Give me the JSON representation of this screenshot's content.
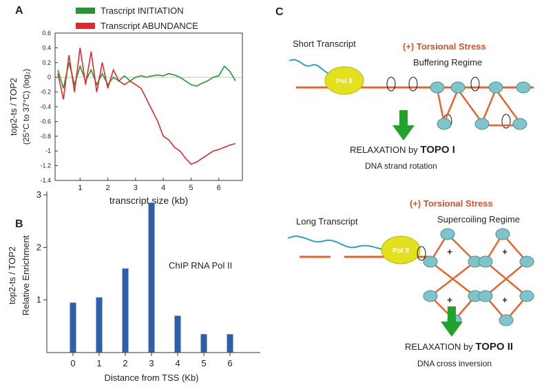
{
  "panel_labels": [
    "A",
    "B",
    "C"
  ],
  "chart_data": [
    {
      "type": "line",
      "ylabel": [
        "top2-ts / TOP2",
        "(25°C to 37°C) (log₂)"
      ],
      "xlabel": "transcript  size  (kb)",
      "x": [
        0.2,
        0.4,
        0.6,
        0.8,
        1.0,
        1.2,
        1.4,
        1.6,
        1.8,
        2.0,
        2.2,
        2.4,
        2.6,
        2.8,
        3.0,
        3.2,
        3.4,
        3.6,
        3.8,
        4.0,
        4.2,
        4.4,
        4.6,
        4.8,
        5.0,
        5.2,
        5.4,
        5.6,
        5.8,
        6.0,
        6.2,
        6.4,
        6.6
      ],
      "series": [
        {
          "name": "Trascript INITIATION",
          "color": "#1e9a2a",
          "values": [
            0.1,
            -0.15,
            0.2,
            -0.1,
            0.15,
            -0.05,
            0.1,
            -0.1,
            0.05,
            -0.1,
            0.0,
            -0.05,
            0.02,
            -0.05,
            0.0,
            0.02,
            0.0,
            0.02,
            0.03,
            0.02,
            0.05,
            0.03,
            0.0,
            -0.05,
            -0.1,
            -0.12,
            -0.08,
            -0.05,
            0.0,
            0.02,
            0.15,
            0.08,
            -0.05
          ]
        },
        {
          "name": "Transcript ABUNDANCE",
          "color": "#e8262a",
          "values": [
            0.05,
            -0.3,
            0.3,
            -0.2,
            0.4,
            -0.1,
            0.35,
            -0.2,
            0.2,
            -0.15,
            0.1,
            -0.05,
            -0.1,
            -0.05,
            -0.1,
            -0.15,
            -0.3,
            -0.45,
            -0.6,
            -0.8,
            -0.85,
            -0.95,
            -1.0,
            -1.1,
            -1.18,
            -1.15,
            -1.1,
            -1.05,
            -1.0,
            -0.98,
            -0.95,
            -0.92,
            -0.9
          ]
        }
      ],
      "xlim": [
        0.1,
        6.85
      ],
      "xticks": [
        1,
        2,
        3,
        4,
        5,
        6
      ],
      "ylim": [
        -1.4,
        0.6
      ],
      "yticks": [
        -1.4,
        -1.2,
        -1,
        -0.8,
        -0.6,
        -0.4,
        -0.2,
        0,
        0.2,
        0.4,
        0.6
      ]
    },
    {
      "type": "bar",
      "ylabel": [
        "top2-ts / TOP2",
        "Relative  Enrichment"
      ],
      "xlabel": "Distance from TSS  (Kb)",
      "annotation": "ChIP RNA Pol II",
      "categories": [
        "0",
        "1",
        "2",
        "3",
        "4",
        "5",
        "6"
      ],
      "values": [
        0.95,
        1.05,
        1.6,
        2.85,
        0.7,
        0.35,
        0.35
      ],
      "color": "#2f5fa8",
      "ylim": [
        0,
        3
      ],
      "yticks": [
        1,
        2,
        3
      ]
    }
  ],
  "diagram": {
    "short": {
      "transcript": "Short  Transcript",
      "polymerase": "Pol II",
      "stress": "(+)  Torsional  Stress",
      "regime": "Buffering  Regime",
      "relaxation": "RELAXATION by",
      "enzyme": "TOPO I",
      "mechanism": "DNA strand rotation"
    },
    "long": {
      "transcript": "Long  Transcript",
      "polymerase": "Pol II",
      "stress": "(+)  Torsional  Stress",
      "regime": "Supercoiling  Regime",
      "relaxation": "RELAXATION by",
      "enzyme": "TOPO II",
      "mechanism": "DNA cross inversion",
      "plus": "+"
    }
  }
}
